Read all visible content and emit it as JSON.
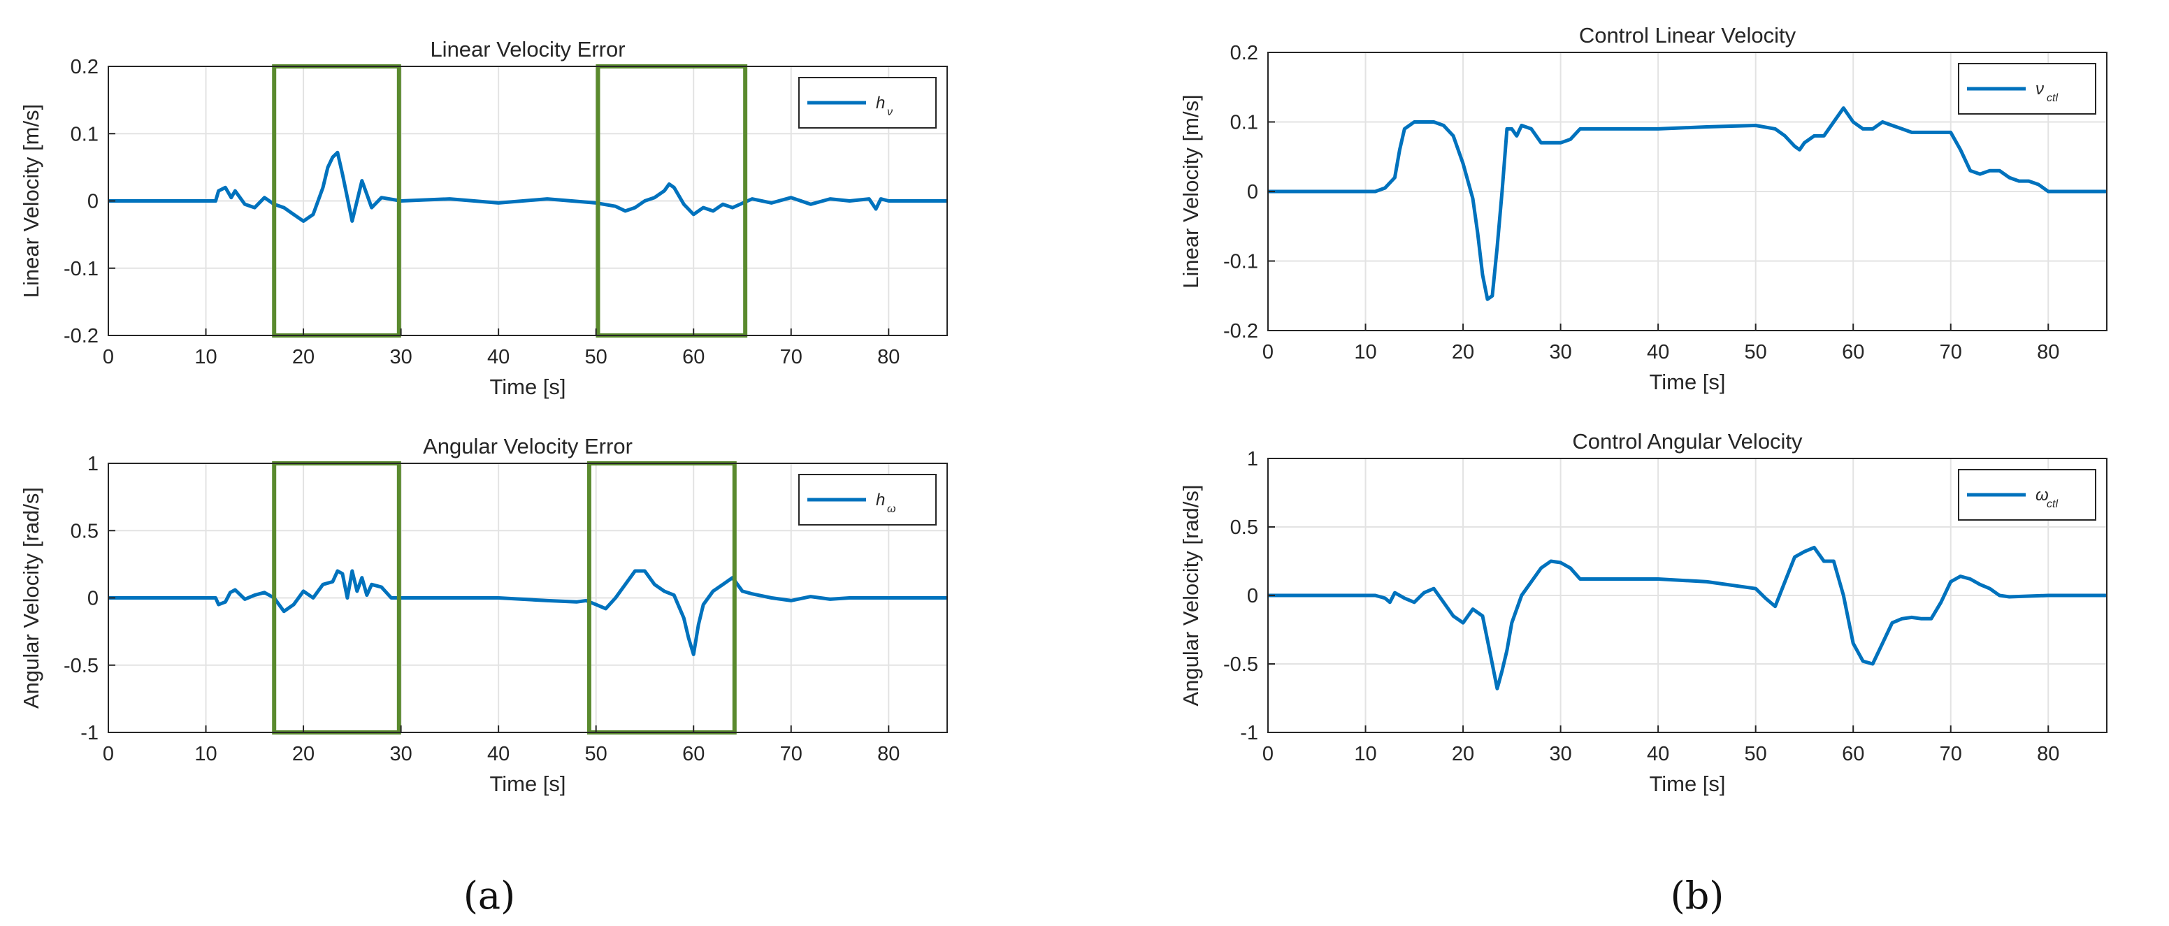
{
  "panel_labels": {
    "a": "(a)",
    "b": "(b)"
  },
  "chart_data": [
    {
      "type": "line",
      "title": "Linear Velocity Error",
      "xlabel": "Time [s]",
      "ylabel": "Linear Velocity [m/s]",
      "xlim": [
        0,
        86
      ],
      "ylim": [
        -0.2,
        0.2
      ],
      "xticks": [
        0,
        10,
        20,
        30,
        40,
        50,
        60,
        70,
        80
      ],
      "yticks": [
        -0.2,
        -0.1,
        0,
        0.1,
        0.2
      ],
      "xtick_labels": [
        "0",
        "10",
        "20",
        "30",
        "40",
        "50",
        "60",
        "70",
        "80"
      ],
      "ytick_labels": [
        "-0.2",
        "-0.1",
        "0",
        "0.1",
        "0.2"
      ],
      "grid": true,
      "legend": {
        "position": "top-right",
        "symbol": "h",
        "subscript": "ν"
      },
      "highlight_boxes": [
        [
          17,
          29.8
        ],
        [
          50.2,
          65.3
        ]
      ],
      "series": [
        {
          "color": "#0072BD",
          "x": [
            0,
            11,
            11.3,
            12,
            12.6,
            13,
            14,
            15,
            16,
            17,
            18,
            19,
            20,
            21,
            22,
            22.5,
            23,
            23.5,
            24,
            24.5,
            25,
            25.5,
            26,
            26.5,
            27,
            28,
            30,
            35,
            40,
            45,
            50,
            52,
            53,
            54,
            55,
            56,
            57,
            57.5,
            58,
            59,
            60,
            61,
            62,
            63,
            64,
            66,
            68,
            70,
            72,
            74,
            76,
            78,
            78.7,
            79.2,
            80,
            86
          ],
          "y": [
            0,
            0,
            0.015,
            0.02,
            0.005,
            0.015,
            -0.005,
            -0.01,
            0.005,
            -0.005,
            -0.01,
            -0.02,
            -0.03,
            -0.02,
            0.02,
            0.05,
            0.065,
            0.072,
            0.04,
            0.005,
            -0.03,
            0.0,
            0.03,
            0.01,
            -0.01,
            0.005,
            0,
            0.003,
            -0.003,
            0.003,
            -0.003,
            -0.008,
            -0.015,
            -0.01,
            0.0,
            0.005,
            0.015,
            0.025,
            0.02,
            -0.005,
            -0.02,
            -0.01,
            -0.015,
            -0.005,
            -0.01,
            0.003,
            -0.003,
            0.005,
            -0.005,
            0.003,
            0.0,
            0.003,
            -0.012,
            0.003,
            0,
            0
          ]
        }
      ]
    },
    {
      "type": "line",
      "title": "Angular Velocity Error",
      "xlabel": "Time [s]",
      "ylabel": "Angular Velocity [rad/s]",
      "xlim": [
        0,
        86
      ],
      "ylim": [
        -1,
        1
      ],
      "xticks": [
        0,
        10,
        20,
        30,
        40,
        50,
        60,
        70,
        80
      ],
      "yticks": [
        -1,
        -0.5,
        0,
        0.5,
        1
      ],
      "xtick_labels": [
        "0",
        "10",
        "20",
        "30",
        "40",
        "50",
        "60",
        "70",
        "80"
      ],
      "ytick_labels": [
        "-1",
        "-0.5",
        "0",
        "0.5",
        "1"
      ],
      "grid": true,
      "legend": {
        "position": "top-right",
        "symbol": "h",
        "subscript": "ω"
      },
      "highlight_boxes": [
        [
          17,
          29.8
        ],
        [
          49.3,
          64.2
        ]
      ],
      "series": [
        {
          "color": "#0072BD",
          "x": [
            0,
            11,
            11.3,
            12,
            12.5,
            13,
            14,
            15,
            16,
            17,
            18,
            19,
            20,
            21,
            22,
            23,
            23.5,
            24,
            24.5,
            25,
            25.5,
            26,
            26.5,
            27,
            28,
            29,
            30,
            35,
            40,
            45,
            48,
            49,
            50,
            51,
            52,
            53,
            54,
            55,
            56,
            57,
            58,
            59,
            59.5,
            60,
            60.5,
            61,
            62,
            63,
            64,
            65,
            66,
            68,
            70,
            72,
            74,
            76,
            80,
            86
          ],
          "y": [
            0,
            0,
            -0.05,
            -0.03,
            0.04,
            0.06,
            -0.01,
            0.02,
            0.04,
            0.0,
            -0.1,
            -0.05,
            0.05,
            0.0,
            0.1,
            0.12,
            0.2,
            0.18,
            0.0,
            0.2,
            0.05,
            0.15,
            0.02,
            0.1,
            0.08,
            0.0,
            0.0,
            0.0,
            0.0,
            -0.02,
            -0.03,
            -0.02,
            -0.05,
            -0.08,
            0.0,
            0.1,
            0.2,
            0.2,
            0.1,
            0.05,
            0.02,
            -0.15,
            -0.3,
            -0.42,
            -0.2,
            -0.05,
            0.05,
            0.1,
            0.15,
            0.05,
            0.03,
            0.0,
            -0.02,
            0.01,
            -0.01,
            0.0,
            0,
            0
          ]
        }
      ]
    },
    {
      "type": "line",
      "title": "Control Linear Velocity",
      "xlabel": "Time [s]",
      "ylabel": "Linear Velocity [m/s]",
      "xlim": [
        0,
        86
      ],
      "ylim": [
        -0.2,
        0.2
      ],
      "xticks": [
        0,
        10,
        20,
        30,
        40,
        50,
        60,
        70,
        80
      ],
      "yticks": [
        -0.2,
        -0.1,
        0,
        0.1,
        0.2
      ],
      "xtick_labels": [
        "0",
        "10",
        "20",
        "30",
        "40",
        "50",
        "60",
        "70",
        "80"
      ],
      "ytick_labels": [
        "-0.2",
        "-0.1",
        "0",
        "0.1",
        "0.2"
      ],
      "grid": true,
      "legend": {
        "position": "top-right",
        "symbol": "ν",
        "subscript": "ctl"
      },
      "series": [
        {
          "color": "#0072BD",
          "x": [
            0,
            11,
            12,
            13,
            13.5,
            14,
            15,
            16,
            17,
            18,
            19,
            20,
            21,
            21.5,
            22,
            22.5,
            23,
            23.5,
            24,
            24.5,
            25,
            25.5,
            26,
            27,
            28,
            29,
            30,
            31,
            32,
            35,
            40,
            45,
            50,
            52,
            53,
            54,
            54.5,
            55,
            56,
            57,
            58,
            59,
            60,
            61,
            62,
            63,
            64,
            65,
            66,
            68,
            70,
            71,
            72,
            73,
            74,
            75,
            76,
            77,
            78,
            79,
            80,
            81,
            86
          ],
          "y": [
            0,
            0,
            0.005,
            0.02,
            0.06,
            0.09,
            0.1,
            0.1,
            0.1,
            0.095,
            0.08,
            0.04,
            -0.01,
            -0.06,
            -0.12,
            -0.155,
            -0.15,
            -0.08,
            0.0,
            0.09,
            0.09,
            0.08,
            0.095,
            0.09,
            0.07,
            0.07,
            0.07,
            0.075,
            0.09,
            0.09,
            0.09,
            0.093,
            0.095,
            0.09,
            0.08,
            0.065,
            0.06,
            0.07,
            0.08,
            0.08,
            0.1,
            0.12,
            0.1,
            0.09,
            0.09,
            0.1,
            0.095,
            0.09,
            0.085,
            0.085,
            0.085,
            0.06,
            0.03,
            0.025,
            0.03,
            0.03,
            0.02,
            0.015,
            0.015,
            0.01,
            0.0,
            0,
            0
          ]
        }
      ]
    },
    {
      "type": "line",
      "title": "Control Angular Velocity",
      "xlabel": "Time [s]",
      "ylabel": "Angular Velocity [rad/s]",
      "xlim": [
        0,
        86
      ],
      "ylim": [
        -1,
        1
      ],
      "xticks": [
        0,
        10,
        20,
        30,
        40,
        50,
        60,
        70,
        80
      ],
      "yticks": [
        -1,
        -0.5,
        0,
        0.5,
        1
      ],
      "xtick_labels": [
        "0",
        "10",
        "20",
        "30",
        "40",
        "50",
        "60",
        "70",
        "80"
      ],
      "ytick_labels": [
        "-1",
        "-0.5",
        "0",
        "0.5",
        "1"
      ],
      "grid": true,
      "legend": {
        "position": "top-right",
        "symbol": "ω",
        "subscript": "ctl"
      },
      "series": [
        {
          "color": "#0072BD",
          "x": [
            0,
            11,
            12,
            12.5,
            13,
            14,
            15,
            16,
            17,
            18,
            19,
            20,
            21,
            22,
            23,
            23.5,
            24,
            24.5,
            25,
            26,
            27,
            28,
            29,
            30,
            31,
            32,
            35,
            40,
            45,
            50,
            51,
            52,
            53,
            54,
            55,
            56,
            57,
            58,
            59,
            60,
            61,
            62,
            63,
            64,
            65,
            66,
            67,
            68,
            69,
            70,
            71,
            72,
            73,
            74,
            75,
            76,
            80,
            86
          ],
          "y": [
            0,
            0,
            -0.02,
            -0.05,
            0.02,
            -0.02,
            -0.05,
            0.02,
            0.05,
            -0.05,
            -0.15,
            -0.2,
            -0.1,
            -0.15,
            -0.5,
            -0.68,
            -0.55,
            -0.4,
            -0.2,
            0.0,
            0.1,
            0.2,
            0.25,
            0.24,
            0.2,
            0.12,
            0.12,
            0.12,
            0.1,
            0.05,
            -0.02,
            -0.08,
            0.1,
            0.28,
            0.32,
            0.35,
            0.25,
            0.25,
            0.0,
            -0.35,
            -0.48,
            -0.5,
            -0.35,
            -0.2,
            -0.17,
            -0.16,
            -0.17,
            -0.17,
            -0.05,
            0.1,
            0.14,
            0.12,
            0.08,
            0.05,
            0.0,
            -0.01,
            0,
            0
          ]
        }
      ]
    }
  ]
}
